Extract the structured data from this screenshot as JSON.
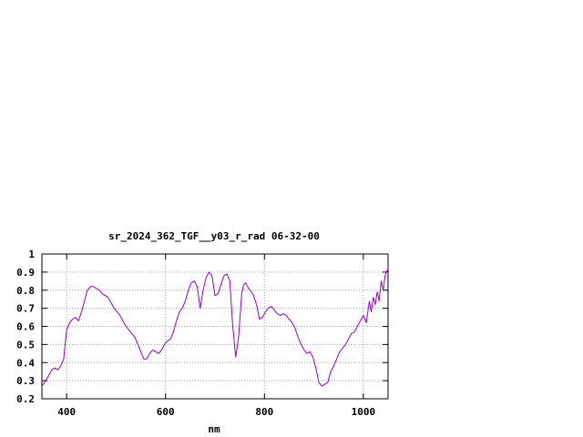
{
  "chart_data": {
    "type": "line",
    "title": "sr_2024_362_TGF__y03_r_rad 06-32-00",
    "xlabel": "nm",
    "ylabel": "",
    "xlim": [
      350,
      1050
    ],
    "ylim": [
      0.2,
      1.0
    ],
    "x_ticks": [
      400,
      600,
      800,
      1000
    ],
    "y_ticks": [
      0.2,
      0.3,
      0.4,
      0.5,
      0.6,
      0.7,
      0.8,
      0.9,
      1.0
    ],
    "x_tick_labels": [
      "400",
      "600",
      "800",
      "1000"
    ],
    "y_tick_labels": [
      "0.2",
      "0.3",
      "0.4",
      "0.5",
      "0.6",
      "0.7",
      "0.8",
      "0.9",
      "1"
    ],
    "grid": true,
    "legend": "none",
    "line_color": "#9400d3",
    "series": [
      {
        "x": [
          350,
          358,
          364,
          370,
          376,
          382,
          388,
          394,
          400,
          406,
          412,
          418,
          424,
          430,
          436,
          442,
          448,
          454,
          460,
          466,
          472,
          478,
          484,
          490,
          496,
          502,
          508,
          514,
          520,
          526,
          532,
          538,
          544,
          550,
          556,
          562,
          568,
          574,
          580,
          586,
          592,
          598,
          604,
          610,
          616,
          622,
          628,
          634,
          640,
          646,
          652,
          658,
          664,
          670,
          676,
          682,
          688,
          694,
          700,
          706,
          712,
          718,
          724,
          730,
          736,
          742,
          748,
          754,
          758,
          762,
          766,
          770,
          774,
          778,
          784,
          790,
          796,
          802,
          808,
          814,
          820,
          826,
          832,
          838,
          844,
          850,
          856,
          862,
          868,
          874,
          880,
          886,
          892,
          898,
          904,
          910,
          916,
          922,
          928,
          934,
          940,
          946,
          952,
          958,
          964,
          970,
          976,
          982,
          988,
          994,
          1000,
          1006,
          1012,
          1016,
          1020,
          1024,
          1028,
          1032,
          1036,
          1040,
          1044,
          1048,
          1050
        ],
        "y": [
          0.27,
          0.3,
          0.33,
          0.36,
          0.37,
          0.36,
          0.38,
          0.42,
          0.58,
          0.62,
          0.64,
          0.65,
          0.63,
          0.68,
          0.74,
          0.8,
          0.82,
          0.82,
          0.81,
          0.8,
          0.78,
          0.77,
          0.76,
          0.73,
          0.7,
          0.68,
          0.66,
          0.63,
          0.6,
          0.58,
          0.56,
          0.54,
          0.5,
          0.46,
          0.42,
          0.42,
          0.45,
          0.47,
          0.46,
          0.45,
          0.47,
          0.5,
          0.52,
          0.53,
          0.57,
          0.63,
          0.68,
          0.7,
          0.74,
          0.8,
          0.84,
          0.85,
          0.82,
          0.7,
          0.8,
          0.87,
          0.9,
          0.88,
          0.77,
          0.78,
          0.83,
          0.88,
          0.89,
          0.85,
          0.6,
          0.43,
          0.55,
          0.78,
          0.83,
          0.84,
          0.82,
          0.8,
          0.79,
          0.77,
          0.72,
          0.64,
          0.65,
          0.68,
          0.7,
          0.71,
          0.69,
          0.67,
          0.66,
          0.67,
          0.66,
          0.64,
          0.62,
          0.59,
          0.54,
          0.5,
          0.47,
          0.45,
          0.46,
          0.43,
          0.37,
          0.29,
          0.27,
          0.28,
          0.29,
          0.35,
          0.38,
          0.42,
          0.46,
          0.48,
          0.5,
          0.53,
          0.56,
          0.57,
          0.6,
          0.63,
          0.66,
          0.62,
          0.74,
          0.68,
          0.76,
          0.72,
          0.79,
          0.74,
          0.85,
          0.8,
          0.88,
          0.91,
          0.89
        ]
      }
    ]
  }
}
